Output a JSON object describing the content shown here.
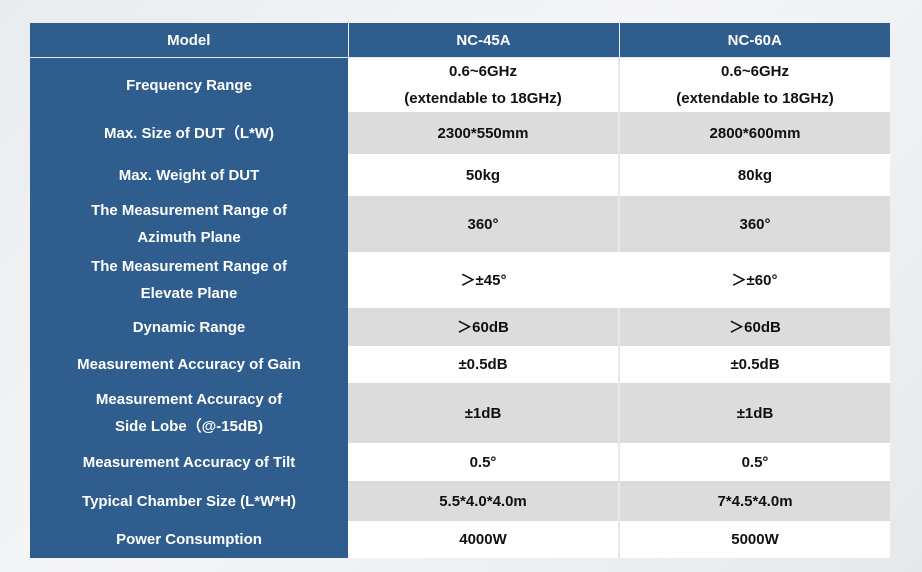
{
  "table": {
    "headers": [
      "Model",
      "NC-45A",
      "NC-60A"
    ],
    "rows": [
      {
        "label": [
          "Frequency Range"
        ],
        "nc45a": [
          "0.6~6GHz",
          "(extendable to 18GHz)"
        ],
        "nc60a": [
          "0.6~6GHz",
          "(extendable to 18GHz)"
        ]
      },
      {
        "label": [
          "Max. Size of DUT（L*W)"
        ],
        "nc45a": [
          "2300*550mm"
        ],
        "nc60a": [
          "2800*600mm"
        ]
      },
      {
        "label": [
          "Max. Weight of DUT"
        ],
        "nc45a": [
          "50kg"
        ],
        "nc60a": [
          "80kg"
        ]
      },
      {
        "label": [
          "The Measurement Range of",
          "Azimuth Plane"
        ],
        "nc45a": [
          "360°"
        ],
        "nc60a": [
          "360°"
        ]
      },
      {
        "label": [
          "The Measurement Range of",
          "Elevate Plane"
        ],
        "nc45a": [
          "＞±45°"
        ],
        "nc60a": [
          "＞±60°"
        ]
      },
      {
        "label": [
          "Dynamic Range"
        ],
        "nc45a": [
          "＞60dB"
        ],
        "nc60a": [
          "＞60dB"
        ]
      },
      {
        "label": [
          "Measurement Accuracy of Gain"
        ],
        "nc45a": [
          "±0.5dB"
        ],
        "nc60a": [
          "±0.5dB"
        ]
      },
      {
        "label": [
          "Measurement Accuracy of",
          "Side Lobe（@-15dB)"
        ],
        "nc45a": [
          "±1dB"
        ],
        "nc60a": [
          "±1dB"
        ]
      },
      {
        "label": [
          "Measurement Accuracy of Tilt"
        ],
        "nc45a": [
          "0.5°"
        ],
        "nc60a": [
          "0.5°"
        ]
      },
      {
        "label": [
          "Typical Chamber Size (L*W*H)"
        ],
        "nc45a": [
          "5.5*4.0*4.0m"
        ],
        "nc60a": [
          "7*4.5*4.0m"
        ]
      },
      {
        "label": [
          "Power Consumption"
        ],
        "nc45a": [
          "4000W"
        ],
        "nc60a": [
          "5000W"
        ]
      }
    ]
  },
  "colors": {
    "header_blue": "#2f5d8e",
    "row_white": "#ffffff",
    "row_gray": "#dcdcdc"
  }
}
